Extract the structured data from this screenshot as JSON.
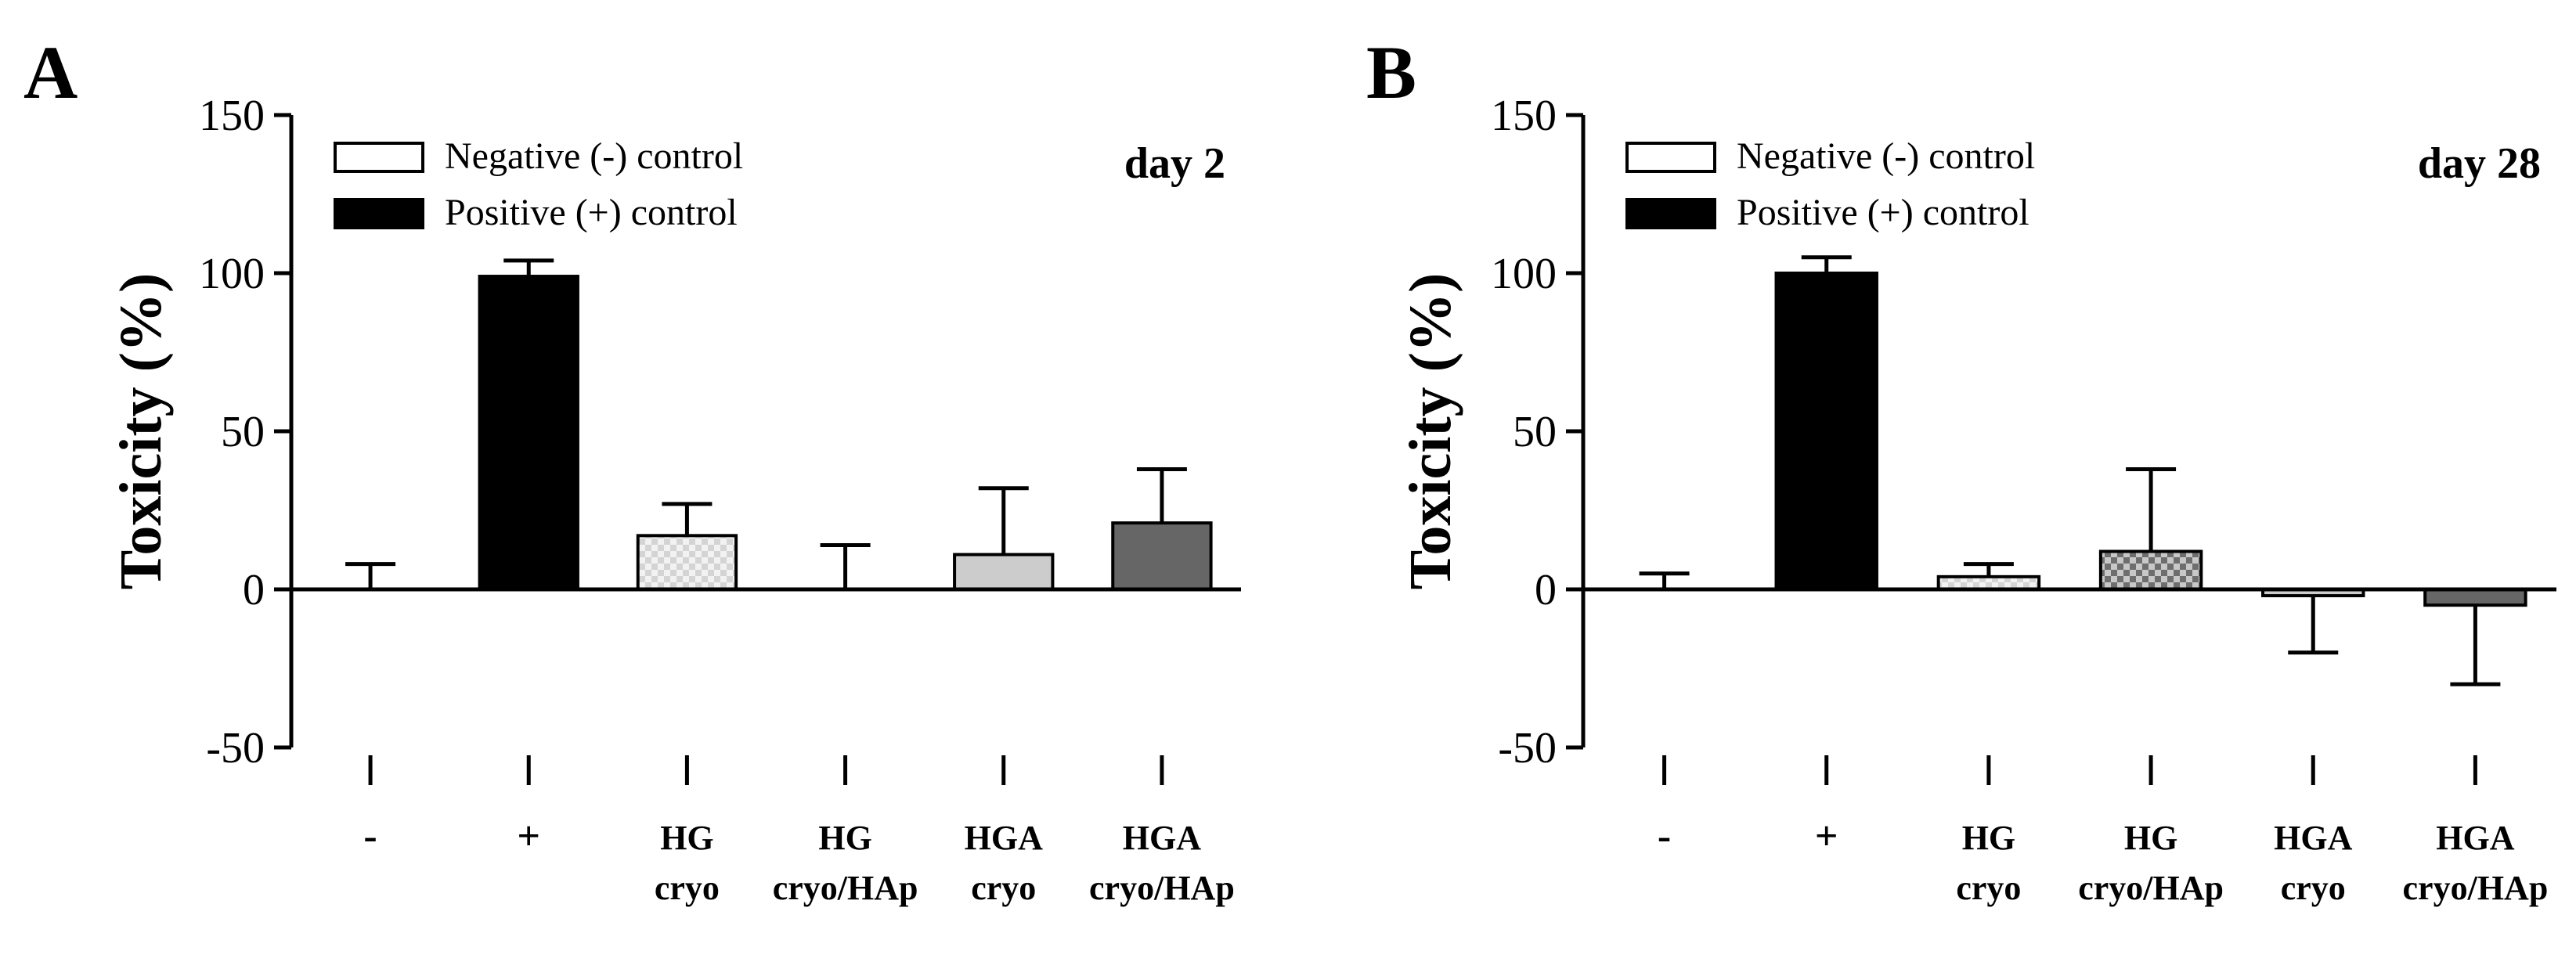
{
  "colors": {
    "axis": "#000000",
    "negative_control": "#ffffff",
    "positive_control": "#000000",
    "hg_cryo": "#e6e6e6",
    "hg_cryo_hap": "#9a9a9a",
    "hga_cryo": "#cccccc",
    "hga_cryo_hap": "#666666"
  },
  "chart_data": [
    {
      "type": "bar",
      "panel": "A",
      "title": "day 2",
      "ylabel": "Toxicity (%)",
      "xlabel": "",
      "ylim": [
        -50,
        150
      ],
      "yticks": [
        -50,
        0,
        50,
        100,
        150
      ],
      "categories": [
        {
          "lines": [
            "-"
          ],
          "value": 0,
          "error": 8,
          "pattern": "white"
        },
        {
          "lines": [
            "+"
          ],
          "value": 99,
          "error": 5,
          "pattern": "black"
        },
        {
          "lines": [
            "HG",
            "cryo"
          ],
          "value": 17,
          "error": 10,
          "pattern": "light-check"
        },
        {
          "lines": [
            "HG",
            "cryo/HAp"
          ],
          "value": 0,
          "error": 14,
          "pattern": "dark-check"
        },
        {
          "lines": [
            "HGA",
            "cryo"
          ],
          "value": 11,
          "error": 21,
          "pattern": "light-gray"
        },
        {
          "lines": [
            "HGA",
            "cryo/HAp"
          ],
          "value": 21,
          "error": 17,
          "pattern": "dark-gray"
        }
      ],
      "legend": {
        "position": "top-left",
        "entries": [
          {
            "label": "Negative (-) control",
            "pattern": "white"
          },
          {
            "label": "Positive (+) control",
            "pattern": "black"
          }
        ]
      }
    },
    {
      "type": "bar",
      "panel": "B",
      "title": "day 28",
      "ylabel": "Toxicity (%)",
      "xlabel": "",
      "ylim": [
        -50,
        150
      ],
      "yticks": [
        -50,
        0,
        50,
        100,
        150
      ],
      "categories": [
        {
          "lines": [
            "-"
          ],
          "value": 0,
          "error": 5,
          "pattern": "white"
        },
        {
          "lines": [
            "+"
          ],
          "value": 100,
          "error": 5,
          "pattern": "black"
        },
        {
          "lines": [
            "HG",
            "cryo"
          ],
          "value": 4,
          "error": 4,
          "pattern": "light-check"
        },
        {
          "lines": [
            "HG",
            "cryo/HAp"
          ],
          "value": 12,
          "error": 26,
          "pattern": "dark-check"
        },
        {
          "lines": [
            "HGA",
            "cryo"
          ],
          "value": -2,
          "error": 18,
          "pattern": "light-gray"
        },
        {
          "lines": [
            "HGA",
            "cryo/HAp"
          ],
          "value": -5,
          "error": 25,
          "pattern": "dark-gray"
        }
      ],
      "legend": {
        "position": "top-left",
        "entries": [
          {
            "label": "Negative (-) control",
            "pattern": "white"
          },
          {
            "label": "Positive (+) control",
            "pattern": "black"
          }
        ]
      }
    }
  ]
}
